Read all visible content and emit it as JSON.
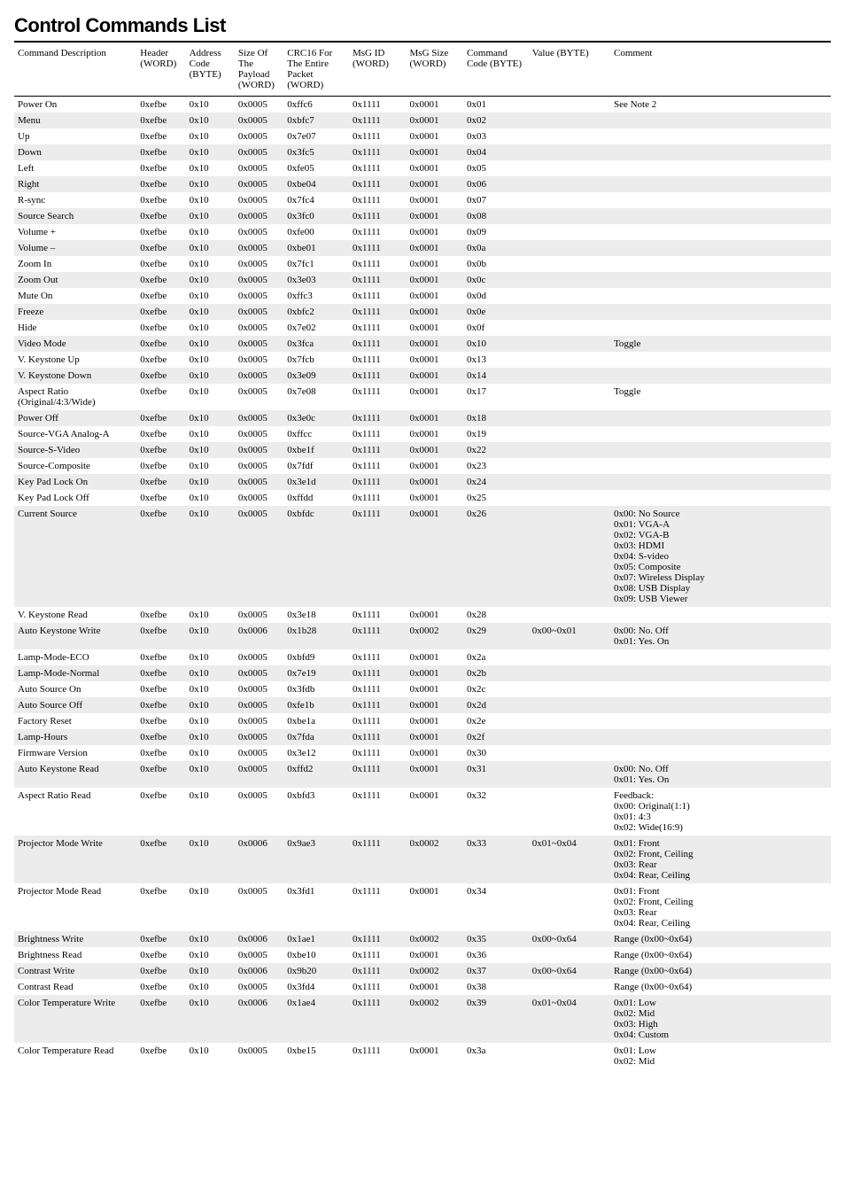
{
  "title": "Control Commands List",
  "columns": [
    "Command Description",
    "Header (WORD)",
    "Address Code (BYTE)",
    "Size Of The Payload (WORD)",
    "CRC16 For The Entire Packet (WORD)",
    "MsG ID (WORD)",
    "MsG Size (WORD)",
    "Command Code (BYTE)",
    "Value (BYTE)",
    "Comment"
  ],
  "rows": [
    [
      "Power On",
      "0xefbe",
      "0x10",
      "0x0005",
      "0xffc6",
      "0x1111",
      "0x0001",
      "0x01",
      "",
      "See Note 2"
    ],
    [
      "Menu",
      "0xefbe",
      "0x10",
      "0x0005",
      "0xbfc7",
      "0x1111",
      "0x0001",
      "0x02",
      "",
      ""
    ],
    [
      "Up",
      "0xefbe",
      "0x10",
      "0x0005",
      "0x7e07",
      "0x1111",
      "0x0001",
      "0x03",
      "",
      ""
    ],
    [
      "Down",
      "0xefbe",
      "0x10",
      "0x0005",
      "0x3fc5",
      "0x1111",
      "0x0001",
      "0x04",
      "",
      ""
    ],
    [
      "Left",
      "0xefbe",
      "0x10",
      "0x0005",
      "0xfe05",
      "0x1111",
      "0x0001",
      "0x05",
      "",
      ""
    ],
    [
      "Right",
      "0xefbe",
      "0x10",
      "0x0005",
      "0xbe04",
      "0x1111",
      "0x0001",
      "0x06",
      "",
      ""
    ],
    [
      "R-sync",
      "0xefbe",
      "0x10",
      "0x0005",
      "0x7fc4",
      "0x1111",
      "0x0001",
      "0x07",
      "",
      ""
    ],
    [
      "Source Search",
      "0xefbe",
      "0x10",
      "0x0005",
      "0x3fc0",
      "0x1111",
      "0x0001",
      "0x08",
      "",
      ""
    ],
    [
      "Volume +",
      "0xefbe",
      "0x10",
      "0x0005",
      "0xfe00",
      "0x1111",
      "0x0001",
      "0x09",
      "",
      ""
    ],
    [
      "Volume –",
      "0xefbe",
      "0x10",
      "0x0005",
      "0xbe01",
      "0x1111",
      "0x0001",
      "0x0a",
      "",
      ""
    ],
    [
      "Zoom In",
      "0xefbe",
      "0x10",
      "0x0005",
      "0x7fc1",
      "0x1111",
      "0x0001",
      "0x0b",
      "",
      ""
    ],
    [
      "Zoom Out",
      "0xefbe",
      "0x10",
      "0x0005",
      "0x3e03",
      "0x1111",
      "0x0001",
      "0x0c",
      "",
      ""
    ],
    [
      "Mute On",
      "0xefbe",
      "0x10",
      "0x0005",
      "0xffc3",
      "0x1111",
      "0x0001",
      "0x0d",
      "",
      ""
    ],
    [
      "Freeze",
      "0xefbe",
      "0x10",
      "0x0005",
      "0xbfc2",
      "0x1111",
      "0x0001",
      "0x0e",
      "",
      ""
    ],
    [
      "Hide",
      "0xefbe",
      "0x10",
      "0x0005",
      "0x7e02",
      "0x1111",
      "0x0001",
      "0x0f",
      "",
      ""
    ],
    [
      "Video Mode",
      "0xefbe",
      "0x10",
      "0x0005",
      "0x3fca",
      "0x1111",
      "0x0001",
      "0x10",
      "",
      "Toggle"
    ],
    [
      "V. Keystone Up",
      "0xefbe",
      "0x10",
      "0x0005",
      "0x7fcb",
      "0x1111",
      "0x0001",
      "0x13",
      "",
      ""
    ],
    [
      "V. Keystone Down",
      "0xefbe",
      "0x10",
      "0x0005",
      "0x3e09",
      "0x1111",
      "0x0001",
      "0x14",
      "",
      ""
    ],
    [
      "Aspect Ratio (Original/4:3/Wide)",
      "0xefbe",
      "0x10",
      "0x0005",
      "0x7e08",
      "0x1111",
      "0x0001",
      "0x17",
      "",
      "Toggle"
    ],
    [
      "Power Off",
      "0xefbe",
      "0x10",
      "0x0005",
      "0x3e0c",
      "0x1111",
      "0x0001",
      "0x18",
      "",
      ""
    ],
    [
      "Source-VGA Analog-A",
      "0xefbe",
      "0x10",
      "0x0005",
      "0xffcc",
      "0x1111",
      "0x0001",
      "0x19",
      "",
      ""
    ],
    [
      "Source-S-Video",
      "0xefbe",
      "0x10",
      "0x0005",
      "0xbe1f",
      "0x1111",
      "0x0001",
      "0x22",
      "",
      ""
    ],
    [
      "Source-Composite",
      "0xefbe",
      "0x10",
      "0x0005",
      "0x7fdf",
      "0x1111",
      "0x0001",
      "0x23",
      "",
      ""
    ],
    [
      "Key Pad Lock On",
      "0xefbe",
      "0x10",
      "0x0005",
      "0x3e1d",
      "0x1111",
      "0x0001",
      "0x24",
      "",
      ""
    ],
    [
      "Key Pad Lock Off",
      "0xefbe",
      "0x10",
      "0x0005",
      "0xffdd",
      "0x1111",
      "0x0001",
      "0x25",
      "",
      ""
    ],
    [
      "Current Source",
      "0xefbe",
      "0x10",
      "0x0005",
      "0xbfdc",
      "0x1111",
      "0x0001",
      "0x26",
      "",
      "0x00: No Source\n0x01: VGA-A\n0x02: VGA-B\n0x03: HDMI\n0x04: S-video\n0x05: Composite\n0x07: Wireless Display\n0x08: USB Display\n0x09: USB Viewer"
    ],
    [
      "V. Keystone Read",
      "0xefbe",
      "0x10",
      "0x0005",
      "0x3e18",
      "0x1111",
      "0x0001",
      "0x28",
      "",
      ""
    ],
    [
      "Auto Keystone Write",
      "0xefbe",
      "0x10",
      "0x0006",
      "0x1b28",
      "0x1111",
      "0x0002",
      "0x29",
      "0x00~0x01",
      "0x00: No. Off\n0x01: Yes. On"
    ],
    [
      "Lamp-Mode-ECO",
      "0xefbe",
      "0x10",
      "0x0005",
      "0xbfd9",
      "0x1111",
      "0x0001",
      "0x2a",
      "",
      ""
    ],
    [
      "Lamp-Mode-Normal",
      "0xefbe",
      "0x10",
      "0x0005",
      "0x7e19",
      "0x1111",
      "0x0001",
      "0x2b",
      "",
      ""
    ],
    [
      "Auto Source On",
      "0xefbe",
      "0x10",
      "0x0005",
      "0x3fdb",
      "0x1111",
      "0x0001",
      "0x2c",
      "",
      ""
    ],
    [
      "Auto Source Off",
      "0xefbe",
      "0x10",
      "0x0005",
      "0xfe1b",
      "0x1111",
      "0x0001",
      "0x2d",
      "",
      ""
    ],
    [
      "Factory Reset",
      "0xefbe",
      "0x10",
      "0x0005",
      "0xbe1a",
      "0x1111",
      "0x0001",
      "0x2e",
      "",
      ""
    ],
    [
      "Lamp-Hours",
      "0xefbe",
      "0x10",
      "0x0005",
      "0x7fda",
      "0x1111",
      "0x0001",
      "0x2f",
      "",
      ""
    ],
    [
      "Firmware Version",
      "0xefbe",
      "0x10",
      "0x0005",
      "0x3e12",
      "0x1111",
      "0x0001",
      "0x30",
      "",
      ""
    ],
    [
      "Auto Keystone Read",
      "0xefbe",
      "0x10",
      "0x0005",
      "0xffd2",
      "0x1111",
      "0x0001",
      "0x31",
      "",
      "0x00: No. Off\n0x01: Yes. On"
    ],
    [
      "Aspect Ratio Read",
      "0xefbe",
      "0x10",
      "0x0005",
      "0xbfd3",
      "0x1111",
      "0x0001",
      "0x32",
      "",
      "Feedback:\n0x00: Original(1:1)\n0x01: 4:3\n0x02: Wide(16:9)"
    ],
    [
      "Projector Mode Write",
      "0xefbe",
      "0x10",
      "0x0006",
      "0x9ae3",
      "0x1111",
      "0x0002",
      "0x33",
      "0x01~0x04",
      "0x01: Front\n0x02: Front, Ceiling\n0x03: Rear\n0x04: Rear, Ceiling"
    ],
    [
      "Projector Mode Read",
      "0xefbe",
      "0x10",
      "0x0005",
      "0x3fd1",
      "0x1111",
      "0x0001",
      "0x34",
      "",
      "0x01: Front\n0x02: Front, Ceiling\n0x03: Rear\n0x04: Rear, Ceiling"
    ],
    [
      "Brightness Write",
      "0xefbe",
      "0x10",
      "0x0006",
      "0x1ae1",
      "0x1111",
      "0x0002",
      "0x35",
      "0x00~0x64",
      "Range (0x00~0x64)"
    ],
    [
      "Brightness Read",
      "0xefbe",
      "0x10",
      "0x0005",
      "0xbe10",
      "0x1111",
      "0x0001",
      "0x36",
      "",
      "Range (0x00~0x64)"
    ],
    [
      "Contrast Write",
      "0xefbe",
      "0x10",
      "0x0006",
      "0x9b20",
      "0x1111",
      "0x0002",
      "0x37",
      "0x00~0x64",
      "Range (0x00~0x64)"
    ],
    [
      "Contrast Read",
      "0xefbe",
      "0x10",
      "0x0005",
      "0x3fd4",
      "0x1111",
      "0x0001",
      "0x38",
      "",
      "Range (0x00~0x64)"
    ],
    [
      "Color Temperature Write",
      "0xefbe",
      "0x10",
      "0x0006",
      "0x1ae4",
      "0x1111",
      "0x0002",
      "0x39",
      "0x01~0x04",
      "0x01: Low\n0x02: Mid\n0x03: High\n0x04: Custom"
    ],
    [
      "Color Temperature Read",
      "0xefbe",
      "0x10",
      "0x0005",
      "0xbe15",
      "0x1111",
      "0x0001",
      "0x3a",
      "",
      "0x01: Low\n0x02: Mid"
    ]
  ]
}
